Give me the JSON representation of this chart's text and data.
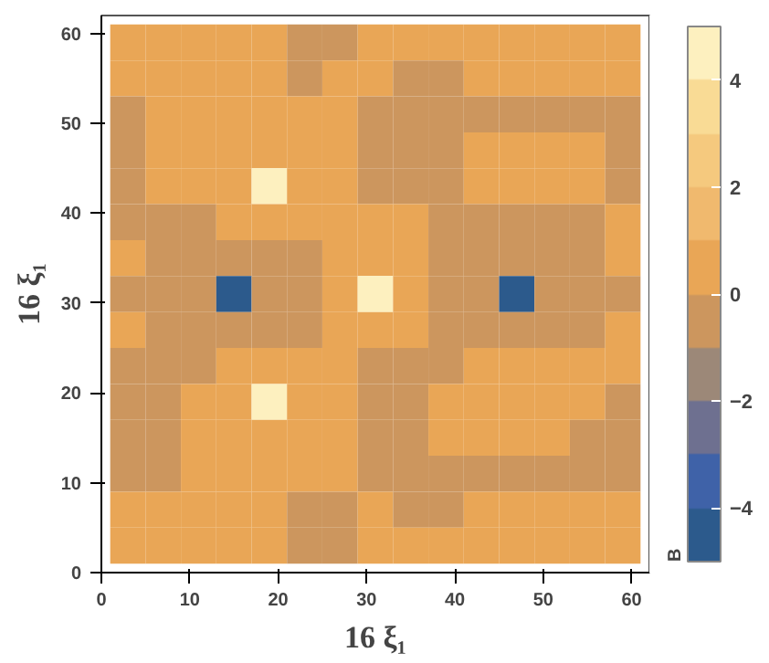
{
  "chart_data": {
    "type": "heatmap",
    "xlabel": "16 ξ₁",
    "ylabel": "16 ξ₁",
    "clabel": "B",
    "x": [
      3,
      7,
      11,
      15,
      19,
      23,
      27,
      31,
      35,
      39,
      43,
      47,
      51,
      55,
      59
    ],
    "y": [
      59,
      55,
      51,
      47,
      43,
      39,
      35,
      31,
      27,
      23,
      19,
      15,
      11,
      7,
      3
    ],
    "cells": [
      [
        0.5,
        0.5,
        0.5,
        0.5,
        0.5,
        -0.5,
        -0.5,
        0.5,
        0.5,
        0.5,
        0.5,
        0.5,
        0.5,
        0.5,
        0.5
      ],
      [
        0.5,
        0.5,
        0.5,
        0.5,
        0.5,
        -0.5,
        0.5,
        0.5,
        -0.5,
        -0.5,
        0.5,
        0.5,
        0.5,
        0.5,
        0.5
      ],
      [
        -0.5,
        0.5,
        0.5,
        0.5,
        0.5,
        0.5,
        0.5,
        -0.5,
        -0.5,
        -0.5,
        -0.5,
        -0.5,
        -0.5,
        -0.5,
        -0.5
      ],
      [
        -0.5,
        0.5,
        0.5,
        0.5,
        0.5,
        0.5,
        0.5,
        -0.5,
        -0.5,
        -0.5,
        0.5,
        0.5,
        0.5,
        0.5,
        -0.5
      ],
      [
        -0.5,
        0.5,
        0.5,
        0.5,
        4.5,
        0.5,
        0.5,
        -0.5,
        -0.5,
        -0.5,
        0.5,
        0.5,
        0.5,
        0.5,
        -0.5
      ],
      [
        -0.5,
        -0.5,
        -0.5,
        0.5,
        0.5,
        0.5,
        0.5,
        0.5,
        0.5,
        -0.5,
        -0.5,
        -0.5,
        -0.5,
        -0.5,
        0.5
      ],
      [
        0.5,
        -0.5,
        -0.5,
        -0.5,
        -0.5,
        -0.5,
        0.5,
        0.5,
        0.5,
        -0.5,
        -0.5,
        -0.5,
        -0.5,
        -0.5,
        0.5
      ],
      [
        -0.5,
        -0.5,
        -0.5,
        -4.5,
        -0.5,
        -0.5,
        0.5,
        4.5,
        0.5,
        -0.5,
        -0.5,
        -4.5,
        -0.5,
        -0.5,
        -0.5
      ],
      [
        0.5,
        -0.5,
        -0.5,
        -0.5,
        -0.5,
        -0.5,
        0.5,
        0.5,
        0.5,
        -0.5,
        -0.5,
        -0.5,
        -0.5,
        -0.5,
        0.5
      ],
      [
        -0.5,
        -0.5,
        -0.5,
        0.5,
        0.5,
        0.5,
        0.5,
        -0.5,
        -0.5,
        -0.5,
        0.5,
        0.5,
        0.5,
        0.5,
        0.5
      ],
      [
        -0.5,
        -0.5,
        0.5,
        0.5,
        4.5,
        0.5,
        0.5,
        -0.5,
        -0.5,
        0.5,
        0.5,
        0.5,
        0.5,
        0.5,
        -0.5
      ],
      [
        -0.5,
        -0.5,
        0.5,
        0.5,
        0.5,
        0.5,
        0.5,
        -0.5,
        -0.5,
        0.5,
        0.5,
        0.5,
        0.5,
        -0.5,
        -0.5
      ],
      [
        -0.5,
        -0.5,
        0.5,
        0.5,
        0.5,
        0.5,
        0.5,
        -0.5,
        -0.5,
        -0.5,
        -0.5,
        -0.5,
        -0.5,
        -0.5,
        -0.5
      ],
      [
        0.5,
        0.5,
        0.5,
        0.5,
        0.5,
        -0.5,
        -0.5,
        0.5,
        -0.5,
        -0.5,
        0.5,
        0.5,
        0.5,
        0.5,
        0.5
      ],
      [
        0.5,
        0.5,
        0.5,
        0.5,
        0.5,
        -0.5,
        -0.5,
        0.5,
        0.5,
        0.5,
        0.5,
        0.5,
        0.5,
        0.5,
        0.5
      ]
    ],
    "colors": [
      "#2c5a8c",
      "#3f62a8",
      "#6e7090",
      "#9c8878",
      "#cc965e",
      "#e9a656",
      "#f0b96e",
      "#f5c97e",
      "#f9db95",
      "#fdf0bf"
    ],
    "clim": [
      -5,
      5
    ],
    "cticks": [
      -4,
      -2,
      0,
      2,
      4
    ],
    "xlim": [
      0,
      62
    ],
    "ylim": [
      0,
      62
    ],
    "xticks": [
      0,
      10,
      20,
      30,
      40,
      50,
      60
    ],
    "yticks": [
      0,
      10,
      20,
      30,
      40,
      50,
      60
    ],
    "grid": false
  }
}
